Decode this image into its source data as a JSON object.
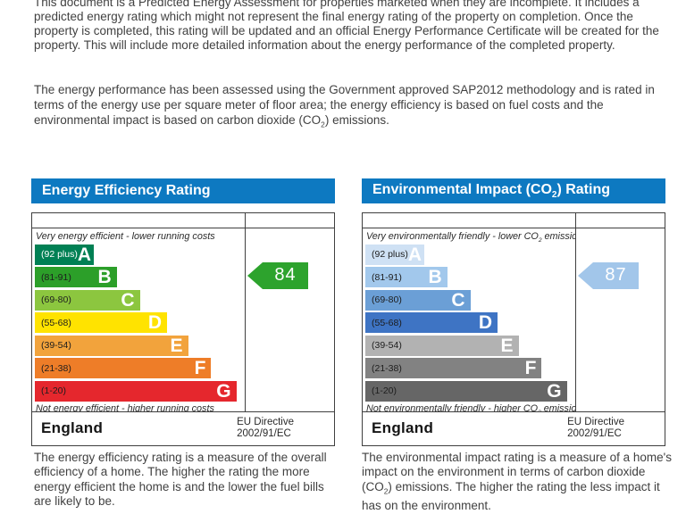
{
  "document": {
    "intro": "This document is a Predicted Energy Assessment for properties marketed when they are incomplete. It includes a predicted energy rating which might not represent the final energy rating of the property on completion. Once the property is completed, this rating will be updated and an official Energy Performance Certificate will be created for the property. This will include more detailed information about the energy performance of the completed property.",
    "methodology_pre": "The energy performance has been assessed using the Government approved SAP2012 methodology and is rated in terms of the energy use per square meter of floor area; the energy efficiency is based on fuel costs and the environmental impact is based on carbon dioxide (CO",
    "methodology_sub": "2",
    "methodology_post": ") emissions."
  },
  "eer": {
    "title": "Energy Efficiency Rating",
    "top_caption": "Very energy efficient - lower running costs",
    "bottom_caption": "Not energy efficient - higher running costs",
    "bands": [
      {
        "range": "(92 plus)",
        "letter": "A",
        "color": "#008054",
        "range_color": "#ffffff",
        "width_pct": 28
      },
      {
        "range": "(81-91)",
        "letter": "B",
        "color": "#2c9f29",
        "range_color": "#1d1d1d",
        "width_pct": 39
      },
      {
        "range": "(69-80)",
        "letter": "C",
        "color": "#8cc63f",
        "range_color": "#1d1d1d",
        "width_pct": 50
      },
      {
        "range": "(55-68)",
        "letter": "D",
        "color": "#ffe300",
        "range_color": "#1d1d1d",
        "width_pct": 63
      },
      {
        "range": "(39-54)",
        "letter": "E",
        "color": "#f2a33c",
        "range_color": "#1d1d1d",
        "width_pct": 73
      },
      {
        "range": "(21-38)",
        "letter": "F",
        "color": "#ee7d28",
        "range_color": "#1d1d1d",
        "width_pct": 84
      },
      {
        "range": "(1-20)",
        "letter": "G",
        "color": "#e5272d",
        "range_color": "#1d1d1d",
        "width_pct": 96
      }
    ],
    "current_value": "84",
    "arrow_color": "#2da32d",
    "region": "England",
    "directive_line1": "EU Directive",
    "directive_line2": "2002/91/EC",
    "description": "The energy efficiency rating is a measure of the overall efficiency of a home. The higher the rating the more energy efficient the home is and the lower the fuel bills are likely to be."
  },
  "eir": {
    "title_pre": "Environmental Impact (CO",
    "title_sub": "2",
    "title_post": ") Rating",
    "top_caption_pre": "Very environmentally friendly - lower CO",
    "top_caption_sub": "2",
    "top_caption_post": " emissions",
    "bottom_caption_pre": "Not environmentally friendly - higher CO",
    "bottom_caption_sub": "2",
    "bottom_caption_post": " emissions",
    "bands": [
      {
        "range": "(92 plus)",
        "letter": "A",
        "color": "#cfe1f4",
        "range_color": "#1d1d1d",
        "width_pct": 28
      },
      {
        "range": "(81-91)",
        "letter": "B",
        "color": "#a2c8ec",
        "range_color": "#1d1d1d",
        "width_pct": 39
      },
      {
        "range": "(69-80)",
        "letter": "C",
        "color": "#6b9fd6",
        "range_color": "#1d1d1d",
        "width_pct": 50
      },
      {
        "range": "(55-68)",
        "letter": "D",
        "color": "#3e74c4",
        "range_color": "#1d1d1d",
        "width_pct": 63
      },
      {
        "range": "(39-54)",
        "letter": "E",
        "color": "#b2b2b2",
        "range_color": "#1d1d1d",
        "width_pct": 73
      },
      {
        "range": "(21-38)",
        "letter": "F",
        "color": "#828282",
        "range_color": "#1d1d1d",
        "width_pct": 84
      },
      {
        "range": "(1-20)",
        "letter": "G",
        "color": "#666666",
        "range_color": "#1d1d1d",
        "width_pct": 96
      }
    ],
    "current_value": "87",
    "arrow_color": "#a2c6ea",
    "region": "England",
    "directive_line1": "EU Directive",
    "directive_line2": "2002/91/EC",
    "description_pre": "The environmental impact rating is a measure of a home's impact on the environment in terms of carbon dioxide (CO",
    "description_sub": "2",
    "description_post": ") emissions. The higher the rating the less impact it has on the environment."
  },
  "chart_data": [
    {
      "type": "bar",
      "title": "Energy Efficiency Rating",
      "categories": [
        "A (92 plus)",
        "B (81-91)",
        "C (69-80)",
        "D (55-68)",
        "E (39-54)",
        "F (21-38)",
        "G (1-20)"
      ],
      "band_colors": [
        "#008054",
        "#2c9f29",
        "#8cc63f",
        "#ffe300",
        "#f2a33c",
        "#ee7d28",
        "#e5272d"
      ],
      "current_rating": 84,
      "current_band": "B",
      "footer": "England — EU Directive 2002/91/EC"
    },
    {
      "type": "bar",
      "title": "Environmental Impact (CO2) Rating",
      "categories": [
        "A (92 plus)",
        "B (81-91)",
        "C (69-80)",
        "D (55-68)",
        "E (39-54)",
        "F (21-38)",
        "G (1-20)"
      ],
      "band_colors": [
        "#cfe1f4",
        "#a2c8ec",
        "#6b9fd6",
        "#3e74c4",
        "#b2b2b2",
        "#828282",
        "#666666"
      ],
      "current_rating": 87,
      "current_band": "B",
      "footer": "England — EU Directive 2002/91/EC"
    }
  ]
}
